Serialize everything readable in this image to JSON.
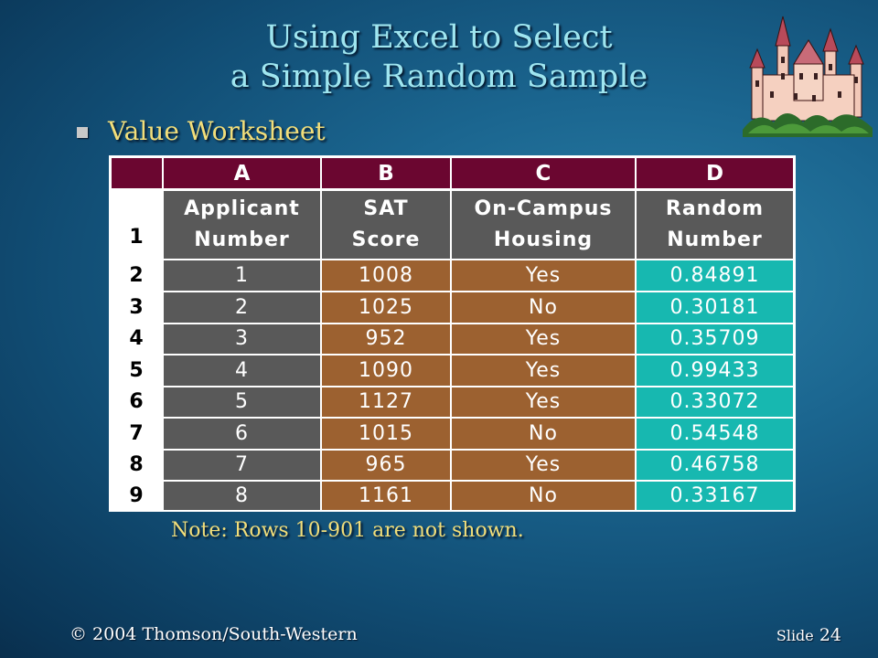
{
  "slide": {
    "title_line1": "Using Excel to Select",
    "title_line2": "a Simple Random Sample",
    "bullet": "Value Worksheet",
    "note": "Note:  Rows 10-901 are not shown.",
    "copyright": "© 2004  Thomson/South-Western",
    "slide_label": "Slide",
    "slide_number": "24",
    "bullet_icon": "square-bullet-icon",
    "decoration_icon": "castle-icon"
  },
  "worksheet": {
    "column_letters": [
      "A",
      "B",
      "C",
      "D"
    ],
    "header_row_number": "1",
    "headers": [
      [
        "Applicant",
        "Number"
      ],
      [
        "SAT",
        "Score"
      ],
      [
        "On-Campus",
        "Housing"
      ],
      [
        "Random",
        "Number"
      ]
    ],
    "rows": [
      {
        "row": "2",
        "cells": [
          "1",
          "1008",
          "Yes",
          "0.84891"
        ]
      },
      {
        "row": "3",
        "cells": [
          "2",
          "1025",
          "No",
          "0.30181"
        ]
      },
      {
        "row": "4",
        "cells": [
          "3",
          "952",
          "Yes",
          "0.35709"
        ]
      },
      {
        "row": "5",
        "cells": [
          "4",
          "1090",
          "Yes",
          "0.99433"
        ]
      },
      {
        "row": "6",
        "cells": [
          "5",
          "1127",
          "Yes",
          "0.33072"
        ]
      },
      {
        "row": "7",
        "cells": [
          "6",
          "1015",
          "No",
          "0.54548"
        ]
      },
      {
        "row": "8",
        "cells": [
          "7",
          "965",
          "Yes",
          "0.46758"
        ]
      },
      {
        "row": "9",
        "cells": [
          "8",
          "1161",
          "No",
          "0.33167"
        ]
      }
    ]
  },
  "colors": {
    "header_bg": "#6b0630",
    "col_a_bg": "#595959",
    "col_bc_bg": "#9c6130",
    "col_d_bg": "#17b8b0",
    "title_color": "#9fe6f0",
    "bullet_color": "#f2de7a"
  }
}
